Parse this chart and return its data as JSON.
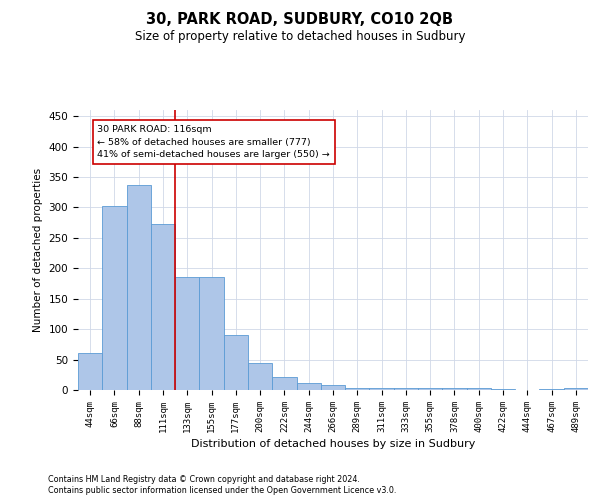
{
  "title": "30, PARK ROAD, SUDBURY, CO10 2QB",
  "subtitle": "Size of property relative to detached houses in Sudbury",
  "xlabel": "Distribution of detached houses by size in Sudbury",
  "ylabel": "Number of detached properties",
  "categories": [
    "44sqm",
    "66sqm",
    "88sqm",
    "111sqm",
    "133sqm",
    "155sqm",
    "177sqm",
    "200sqm",
    "222sqm",
    "244sqm",
    "266sqm",
    "289sqm",
    "311sqm",
    "333sqm",
    "355sqm",
    "378sqm",
    "400sqm",
    "422sqm",
    "444sqm",
    "467sqm",
    "489sqm"
  ],
  "values": [
    60,
    303,
    337,
    272,
    185,
    185,
    90,
    45,
    22,
    12,
    8,
    4,
    3,
    4,
    3,
    4,
    3,
    1,
    0,
    1,
    3
  ],
  "bar_color": "#aec6e8",
  "bar_edge_color": "#5b9bd5",
  "vline_x": 3.5,
  "vline_color": "#cc0000",
  "annotation_box_text": "30 PARK ROAD: 116sqm\n← 58% of detached houses are smaller (777)\n41% of semi-detached houses are larger (550) →",
  "box_edge_color": "#cc0000",
  "footnote1": "Contains HM Land Registry data © Crown copyright and database right 2024.",
  "footnote2": "Contains public sector information licensed under the Open Government Licence v3.0.",
  "ylim": [
    0,
    460
  ],
  "yticks": [
    0,
    50,
    100,
    150,
    200,
    250,
    300,
    350,
    400,
    450
  ],
  "background_color": "#ffffff",
  "grid_color": "#d0d8e8",
  "title_fontsize": 10.5,
  "subtitle_fontsize": 8.5
}
